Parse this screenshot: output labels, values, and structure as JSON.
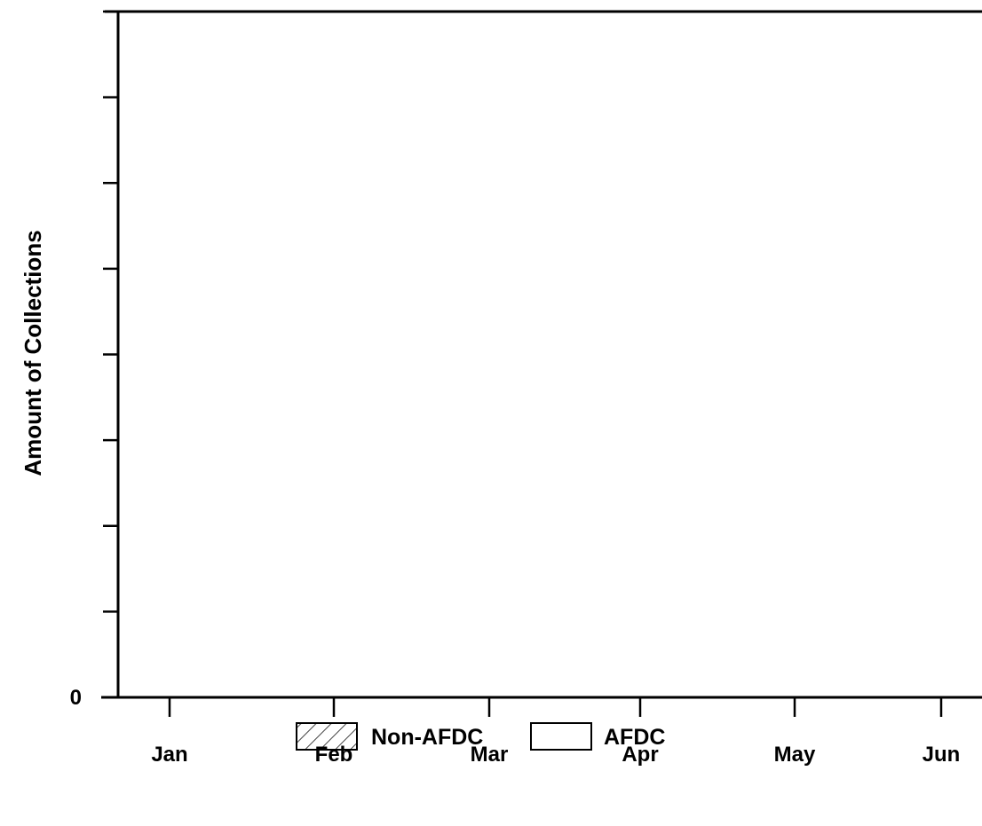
{
  "chart_data": {
    "type": "bar",
    "categories": [
      "Jan",
      "Feb",
      "Mar",
      "Apr",
      "May",
      "Jun"
    ],
    "series": [
      {
        "name": "Non-AFDC",
        "values": [
          null,
          null,
          null,
          null,
          null,
          null
        ],
        "pattern": "hatched"
      },
      {
        "name": "AFDC",
        "values": [
          null,
          null,
          null,
          null,
          null,
          null
        ],
        "pattern": "empty"
      }
    ],
    "stacked": true,
    "title": "",
    "xlabel": "",
    "ylabel": "Amount of Collections",
    "y_tick_labels": [
      "0"
    ],
    "y_tick_count": 9,
    "y_tick_labels_only_at_zero": true,
    "grid": false,
    "legend_placement": "bottom-center",
    "colors": {
      "axis": "#000000",
      "background": "#ffffff"
    }
  }
}
